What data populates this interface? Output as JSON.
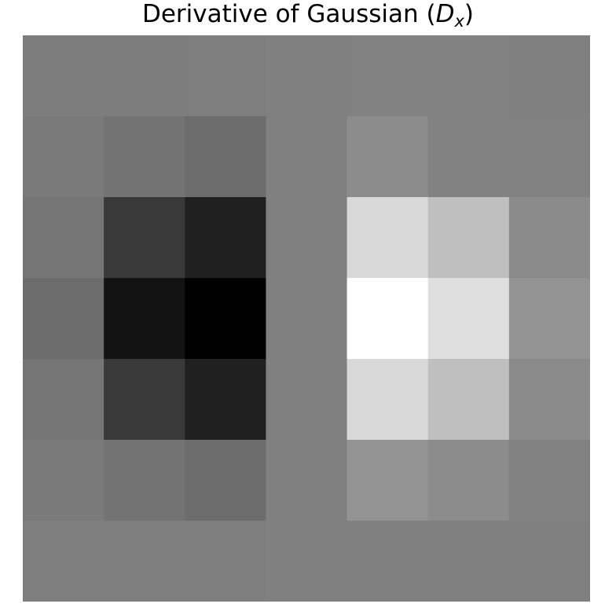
{
  "chart_data": {
    "type": "heatmap",
    "title": "Derivative of Gaussian (D_x)",
    "title_parts": {
      "prefix": "Derivative of Gaussian (",
      "symbol": "D",
      "subscript": "x",
      "suffix": ")"
    },
    "colormap": "gray",
    "axes_visible": false,
    "rows": 7,
    "cols": 7,
    "values": [
      [
        -0.02,
        -0.02,
        -0.01,
        0.0,
        0.01,
        0.01,
        0.0
      ],
      [
        -0.04,
        -0.1,
        -0.15,
        0.0,
        0.1,
        0.02,
        0.01
      ],
      [
        -0.08,
        -0.55,
        -0.75,
        0.0,
        0.7,
        0.5,
        0.08
      ],
      [
        -0.15,
        -0.85,
        -1.0,
        0.0,
        1.0,
        0.75,
        0.15
      ],
      [
        -0.08,
        -0.55,
        -0.75,
        0.0,
        0.7,
        0.5,
        0.08
      ],
      [
        -0.04,
        -0.1,
        -0.15,
        0.0,
        0.15,
        0.1,
        0.01
      ],
      [
        -0.01,
        -0.01,
        -0.01,
        0.0,
        0.0,
        0.0,
        0.0
      ]
    ],
    "vmin": -1.0,
    "vmax": 1.0
  }
}
